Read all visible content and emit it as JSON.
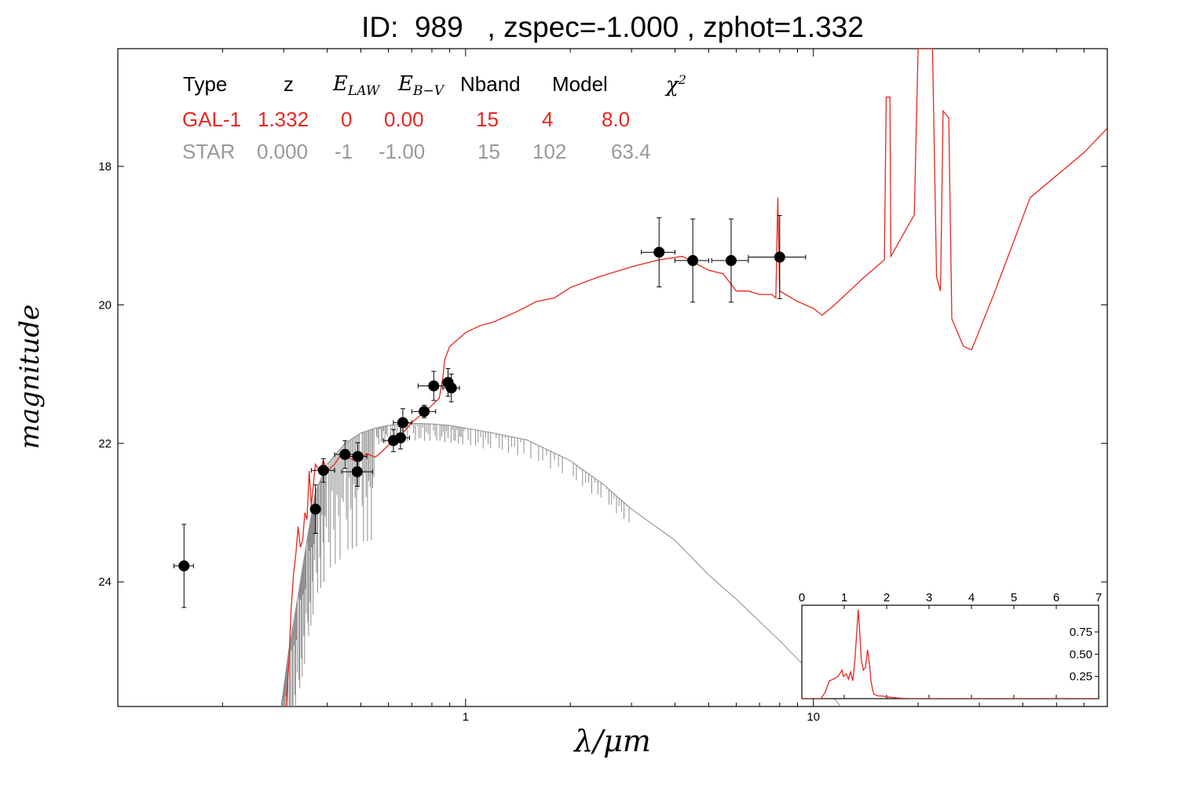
{
  "header": {
    "title": "ID:  989   , zspec=-1.000 , zphot=1.332"
  },
  "table": {
    "headers": {
      "type": "Type",
      "z": "z",
      "elaw_base": "E",
      "elaw_sub": "LAW",
      "ebv_base": "E",
      "ebv_sub": "B−V",
      "nband": "Nband",
      "model": "Model",
      "chi2_base": "χ",
      "chi2_sup": "2"
    },
    "rows": [
      {
        "type": "GAL-1",
        "z": "1.332",
        "elaw": "0",
        "ebv": "0.00",
        "nband": "15",
        "model": "4",
        "chi2": "8.0",
        "color": "#e8261e"
      },
      {
        "type": "STAR",
        "z": "0.000",
        "elaw": "-1",
        "ebv": "-1.00",
        "nband": "15",
        "model": "102",
        "chi2": "63.4",
        "color": "#999999"
      }
    ]
  },
  "chart_data": [
    {
      "type": "scatter",
      "xlabel": "λ/μm",
      "ylabel": "magnitude",
      "xscale": "log",
      "xlim": [
        0.1,
        70
      ],
      "ylim": [
        25.8,
        16.3
      ],
      "yticks": [
        18,
        20,
        22,
        24
      ],
      "xticks": [
        1,
        10
      ],
      "grid": false,
      "colors": {
        "galaxy": "#e8261e",
        "star": "#8c8c8c",
        "points": "#000000"
      },
      "points": [
        {
          "x": 0.155,
          "y": 23.77,
          "xerr": [
            0.145,
            0.165
          ],
          "yerr": [
            23.17,
            24.37
          ]
        },
        {
          "x": 0.37,
          "y": 22.95,
          "xerr": [
            0.36,
            0.38
          ],
          "yerr": [
            22.6,
            23.3
          ]
        },
        {
          "x": 0.39,
          "y": 22.39,
          "xerr": [
            0.36,
            0.42
          ],
          "yerr": [
            22.22,
            22.56
          ]
        },
        {
          "x": 0.45,
          "y": 22.16,
          "xerr": [
            0.42,
            0.48
          ],
          "yerr": [
            21.96,
            22.36
          ]
        },
        {
          "x": 0.49,
          "y": 22.19,
          "xerr": [
            0.46,
            0.52
          ],
          "yerr": [
            21.99,
            22.39
          ]
        },
        {
          "x": 0.488,
          "y": 22.41,
          "xerr": [
            0.44,
            0.54
          ],
          "yerr": [
            22.2,
            22.62
          ]
        },
        {
          "x": 0.62,
          "y": 21.96,
          "xerr": [
            0.58,
            0.66
          ],
          "yerr": [
            21.8,
            22.12
          ]
        },
        {
          "x": 0.65,
          "y": 21.92,
          "xerr": [
            0.61,
            0.69
          ],
          "yerr": [
            21.76,
            22.08
          ]
        },
        {
          "x": 0.66,
          "y": 21.7,
          "xerr": [
            0.62,
            0.7
          ],
          "yerr": [
            21.5,
            21.9
          ]
        },
        {
          "x": 0.76,
          "y": 21.54,
          "xerr": [
            0.7,
            0.82
          ],
          "yerr": [
            21.45,
            21.63
          ]
        },
        {
          "x": 0.81,
          "y": 21.17,
          "xerr": [
            0.73,
            0.88
          ],
          "yerr": [
            20.96,
            21.38
          ]
        },
        {
          "x": 0.89,
          "y": 21.12,
          "xerr": [
            0.86,
            0.92
          ],
          "yerr": [
            20.92,
            21.32
          ]
        },
        {
          "x": 0.91,
          "y": 21.2,
          "xerr": [
            0.86,
            0.96
          ],
          "yerr": [
            21.0,
            21.4
          ]
        },
        {
          "x": 3.6,
          "y": 19.24,
          "xerr": [
            3.2,
            4.0
          ],
          "yerr": [
            18.74,
            19.74
          ]
        },
        {
          "x": 4.5,
          "y": 19.36,
          "xerr": [
            4.0,
            5.0
          ],
          "yerr": [
            18.76,
            19.96
          ]
        },
        {
          "x": 5.8,
          "y": 19.36,
          "xerr": [
            5.1,
            6.5
          ],
          "yerr": [
            18.76,
            19.96
          ]
        },
        {
          "x": 8.0,
          "y": 19.31,
          "xerr": [
            6.5,
            9.5
          ],
          "yerr": [
            18.71,
            19.91
          ]
        }
      ],
      "galaxy_sed": [
        [
          0.305,
          25.8
        ],
        [
          0.31,
          25.2
        ],
        [
          0.315,
          24.4
        ],
        [
          0.32,
          23.9
        ],
        [
          0.325,
          23.6
        ],
        [
          0.33,
          23.2
        ],
        [
          0.335,
          23.5
        ],
        [
          0.34,
          23.4
        ],
        [
          0.345,
          23.0
        ],
        [
          0.35,
          23.1
        ],
        [
          0.355,
          22.4
        ],
        [
          0.36,
          22.9
        ],
        [
          0.37,
          22.3
        ],
        [
          0.38,
          22.4
        ],
        [
          0.39,
          22.25
        ],
        [
          0.4,
          22.4
        ],
        [
          0.42,
          22.3
        ],
        [
          0.44,
          22.15
        ],
        [
          0.46,
          22.2
        ],
        [
          0.48,
          22.25
        ],
        [
          0.5,
          22.2
        ],
        [
          0.52,
          22.15
        ],
        [
          0.55,
          22.2
        ],
        [
          0.58,
          22.1
        ],
        [
          0.62,
          21.95
        ],
        [
          0.66,
          21.85
        ],
        [
          0.7,
          21.7
        ],
        [
          0.76,
          21.55
        ],
        [
          0.8,
          21.45
        ],
        [
          0.84,
          21.35
        ],
        [
          0.86,
          21.05
        ],
        [
          0.87,
          20.8
        ],
        [
          0.9,
          20.6
        ],
        [
          0.95,
          20.5
        ],
        [
          1.0,
          20.4
        ],
        [
          1.1,
          20.3
        ],
        [
          1.2,
          20.25
        ],
        [
          1.4,
          20.1
        ],
        [
          1.6,
          19.95
        ],
        [
          1.8,
          19.9
        ],
        [
          2.0,
          19.75
        ],
        [
          2.4,
          19.6
        ],
        [
          3.0,
          19.45
        ],
        [
          3.6,
          19.35
        ],
        [
          4.2,
          19.3
        ],
        [
          5.0,
          19.5
        ],
        [
          5.5,
          19.55
        ],
        [
          6.0,
          19.8
        ],
        [
          6.5,
          19.8
        ],
        [
          7.0,
          19.85
        ],
        [
          7.6,
          19.85
        ],
        [
          7.8,
          19.9
        ],
        [
          7.9,
          18.45
        ],
        [
          8.0,
          19.8
        ],
        [
          9.0,
          19.95
        ],
        [
          10.0,
          20.05
        ],
        [
          10.6,
          20.15
        ],
        [
          11.5,
          20.0
        ],
        [
          14.0,
          19.6
        ],
        [
          16.0,
          19.35
        ],
        [
          16.2,
          17.0
        ],
        [
          16.6,
          17.0
        ],
        [
          16.7,
          19.3
        ],
        [
          19.5,
          18.7
        ],
        [
          20.0,
          16.3
        ],
        [
          22.0,
          16.3
        ],
        [
          22.6,
          19.6
        ],
        [
          23.2,
          19.8
        ],
        [
          23.6,
          17.2
        ],
        [
          24.5,
          17.3
        ],
        [
          25.0,
          20.2
        ],
        [
          27.0,
          20.6
        ],
        [
          28.5,
          20.65
        ],
        [
          33.0,
          19.85
        ],
        [
          42.0,
          18.45
        ],
        [
          60.0,
          17.8
        ],
        [
          70.0,
          17.45
        ]
      ],
      "star_sed": [
        [
          0.295,
          25.8
        ],
        [
          0.31,
          25.0
        ],
        [
          0.33,
          24.2
        ],
        [
          0.35,
          23.4
        ],
        [
          0.37,
          22.7
        ],
        [
          0.4,
          22.3
        ],
        [
          0.45,
          22.0
        ],
        [
          0.5,
          21.85
        ],
        [
          0.55,
          21.78
        ],
        [
          0.6,
          21.74
        ],
        [
          0.7,
          21.71
        ],
        [
          0.8,
          21.72
        ],
        [
          0.9,
          21.74
        ],
        [
          1.0,
          21.78
        ],
        [
          1.2,
          21.85
        ],
        [
          1.5,
          21.95
        ],
        [
          2.0,
          22.25
        ],
        [
          2.5,
          22.6
        ],
        [
          3.0,
          22.95
        ],
        [
          4.0,
          23.4
        ],
        [
          5.0,
          23.9
        ],
        [
          6.0,
          24.25
        ],
        [
          8.0,
          24.85
        ],
        [
          10.0,
          25.35
        ],
        [
          12.0,
          25.8
        ]
      ]
    },
    {
      "type": "line",
      "title": "",
      "xlim": [
        0,
        7
      ],
      "ylim": [
        0,
        1.05
      ],
      "xticks": [
        0,
        1,
        2,
        3,
        4,
        5,
        6,
        7
      ],
      "yticks": [
        0.25,
        0.5,
        0.75
      ],
      "ytick_labels": [
        "0.25",
        "0.50",
        "0.75"
      ],
      "color": "#e8261e",
      "x": [
        0.0,
        0.45,
        0.55,
        0.65,
        0.75,
        0.85,
        0.95,
        0.98,
        1.05,
        1.1,
        1.15,
        1.2,
        1.25,
        1.3,
        1.33,
        1.36,
        1.4,
        1.45,
        1.5,
        1.55,
        1.6,
        1.63,
        1.67,
        1.7,
        1.8,
        1.9,
        2.0,
        2.2,
        2.5,
        7.0
      ],
      "y": [
        0.0,
        0.0,
        0.07,
        0.2,
        0.22,
        0.25,
        0.32,
        0.25,
        0.28,
        0.22,
        0.3,
        0.2,
        0.42,
        0.78,
        1.0,
        0.8,
        0.45,
        0.32,
        0.35,
        0.55,
        0.37,
        0.2,
        0.1,
        0.05,
        0.03,
        0.03,
        0.02,
        0.01,
        0.0,
        0.0
      ]
    }
  ]
}
